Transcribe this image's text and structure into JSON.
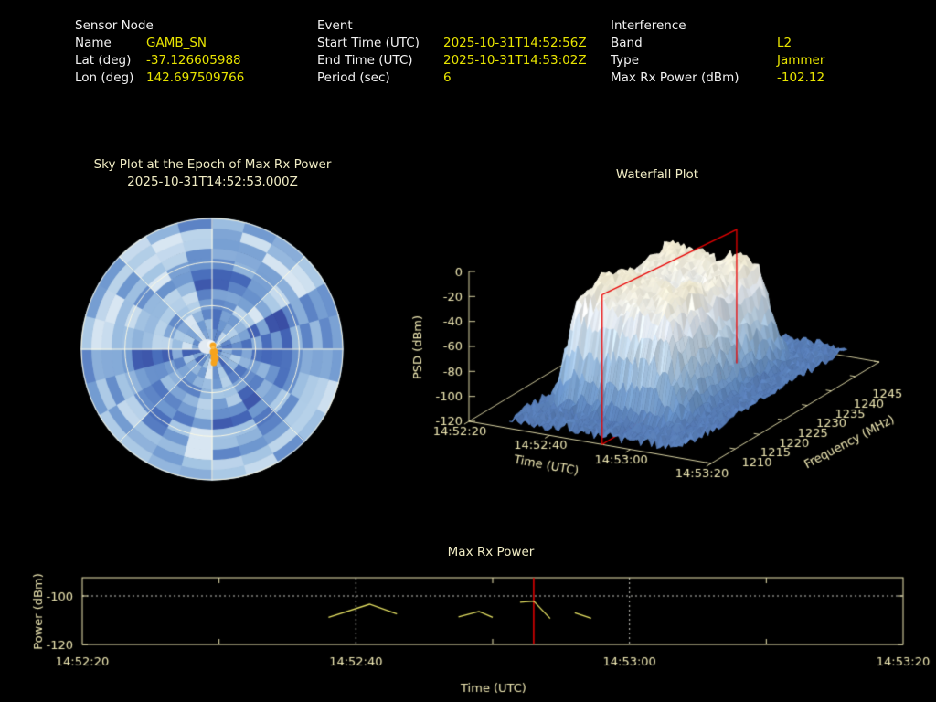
{
  "page": {
    "background": "#000000"
  },
  "header": {
    "sensor": {
      "title": "Sensor Node",
      "rows": [
        {
          "label": "Name",
          "value": "GAMB_SN"
        },
        {
          "label": "Lat (deg)",
          "value": "-37.126605988"
        },
        {
          "label": "Lon (deg)",
          "value": "142.697509766"
        }
      ]
    },
    "event": {
      "title": "Event",
      "rows": [
        {
          "label": "Start Time (UTC)",
          "value": "2025-10-31T14:52:56Z"
        },
        {
          "label": "End Time (UTC)",
          "value": "2025-10-31T14:53:02Z"
        },
        {
          "label": "Period (sec)",
          "value": "6"
        }
      ]
    },
    "interference": {
      "title": "Interference",
      "rows": [
        {
          "label": "Band",
          "value": "L2"
        },
        {
          "label": "Type",
          "value": "Jammer"
        },
        {
          "label": "Max Rx Power (dBm)",
          "value": "-102.12"
        }
      ]
    }
  },
  "colors": {
    "background": "#000000",
    "header_label": "#f2f2f2",
    "header_value": "#e8e400",
    "axis_text": "#f0e9b4",
    "epoch_line": "#e80000",
    "marker_orange": "#f6a31c",
    "power_line": "#e6e263"
  },
  "chart_data": [
    {
      "type": "heatmap",
      "subtype": "polar-sky-heatmap",
      "title": "Sky Plot at the Epoch of Max Rx Power",
      "subtitle": "2025-10-31T14:52:53.000Z",
      "elevation_rings_deg": [
        30,
        60
      ],
      "azimuth_spokes_deg": [
        0,
        45,
        90,
        135,
        180,
        225,
        270,
        315
      ],
      "sectors": 24,
      "radial_bins": 13,
      "palette": [
        "#3a4da3",
        "#4569b9",
        "#6e97cf",
        "#a6c6e4",
        "#d8e6f2"
      ],
      "marker": {
        "name": "max-rx-power-direction",
        "azimuth_deg": 180,
        "elevation_deg": 80,
        "color": "#f6a31c"
      },
      "center_patch_color": "#e2eaf2"
    },
    {
      "type": "heatmap",
      "subtype": "3d-surface-waterfall",
      "title": "Waterfall Plot",
      "zlabel": "PSD (dBm)",
      "z_ticks": [
        0,
        -20,
        -40,
        -60,
        -80,
        -100,
        -120
      ],
      "xlabel": "Time (UTC)",
      "x_ticks": [
        "14:52:20",
        "14:52:40",
        "14:53:00",
        "14:53:20"
      ],
      "ylabel": "Frequency (MHz)",
      "y_ticks": [
        1210,
        1215,
        1220,
        1225,
        1230,
        1235,
        1240,
        1245
      ],
      "noise_floor_dbm": -112,
      "signal": {
        "freq_range_mhz": [
          1215,
          1241
        ],
        "time_range_utc": [
          "14:52:30",
          "14:53:00"
        ],
        "peak_psd_dbm": -20
      },
      "epoch_slice": {
        "time_utc": "14:52:53",
        "color": "#e80000"
      },
      "palette": [
        "#4d6fae",
        "#6690c6",
        "#8fb4da",
        "#c2d8ea",
        "#e8eef5",
        "#f3f1e6",
        "#f0e9cf"
      ]
    },
    {
      "type": "line",
      "title": "Max Rx Power",
      "xlabel": "Time (UTC)",
      "ylabel": "Power (dBm)",
      "x_ticks": [
        "14:52:20",
        "14:52:40",
        "14:53:00",
        "14:53:20"
      ],
      "x_tick_seconds": [
        0,
        20,
        40,
        60
      ],
      "minor_tick_seconds": [
        10,
        30,
        50
      ],
      "grid_seconds": [
        20,
        40
      ],
      "y_ticks": [
        -100,
        -120
      ],
      "ylim": [
        -120,
        -92.5
      ],
      "epoch_line": {
        "time_utc": "14:52:53",
        "seconds": 33
      },
      "series": [
        {
          "name": "max_rx_power_dbm",
          "color": "#e6e263",
          "segments": [
            [
              [
                18,
                -108.8
              ],
              [
                21,
                -103.4
              ],
              [
                23,
                -107.4
              ]
            ],
            [
              [
                27.5,
                -108.6
              ],
              [
                29,
                -106.4
              ],
              [
                30,
                -108.8
              ]
            ],
            [
              [
                32,
                -102.6
              ],
              [
                33,
                -102.12
              ],
              [
                34.2,
                -109.3
              ]
            ],
            [
              [
                36,
                -106.9
              ],
              [
                37.2,
                -109.2
              ]
            ]
          ]
        }
      ]
    }
  ]
}
